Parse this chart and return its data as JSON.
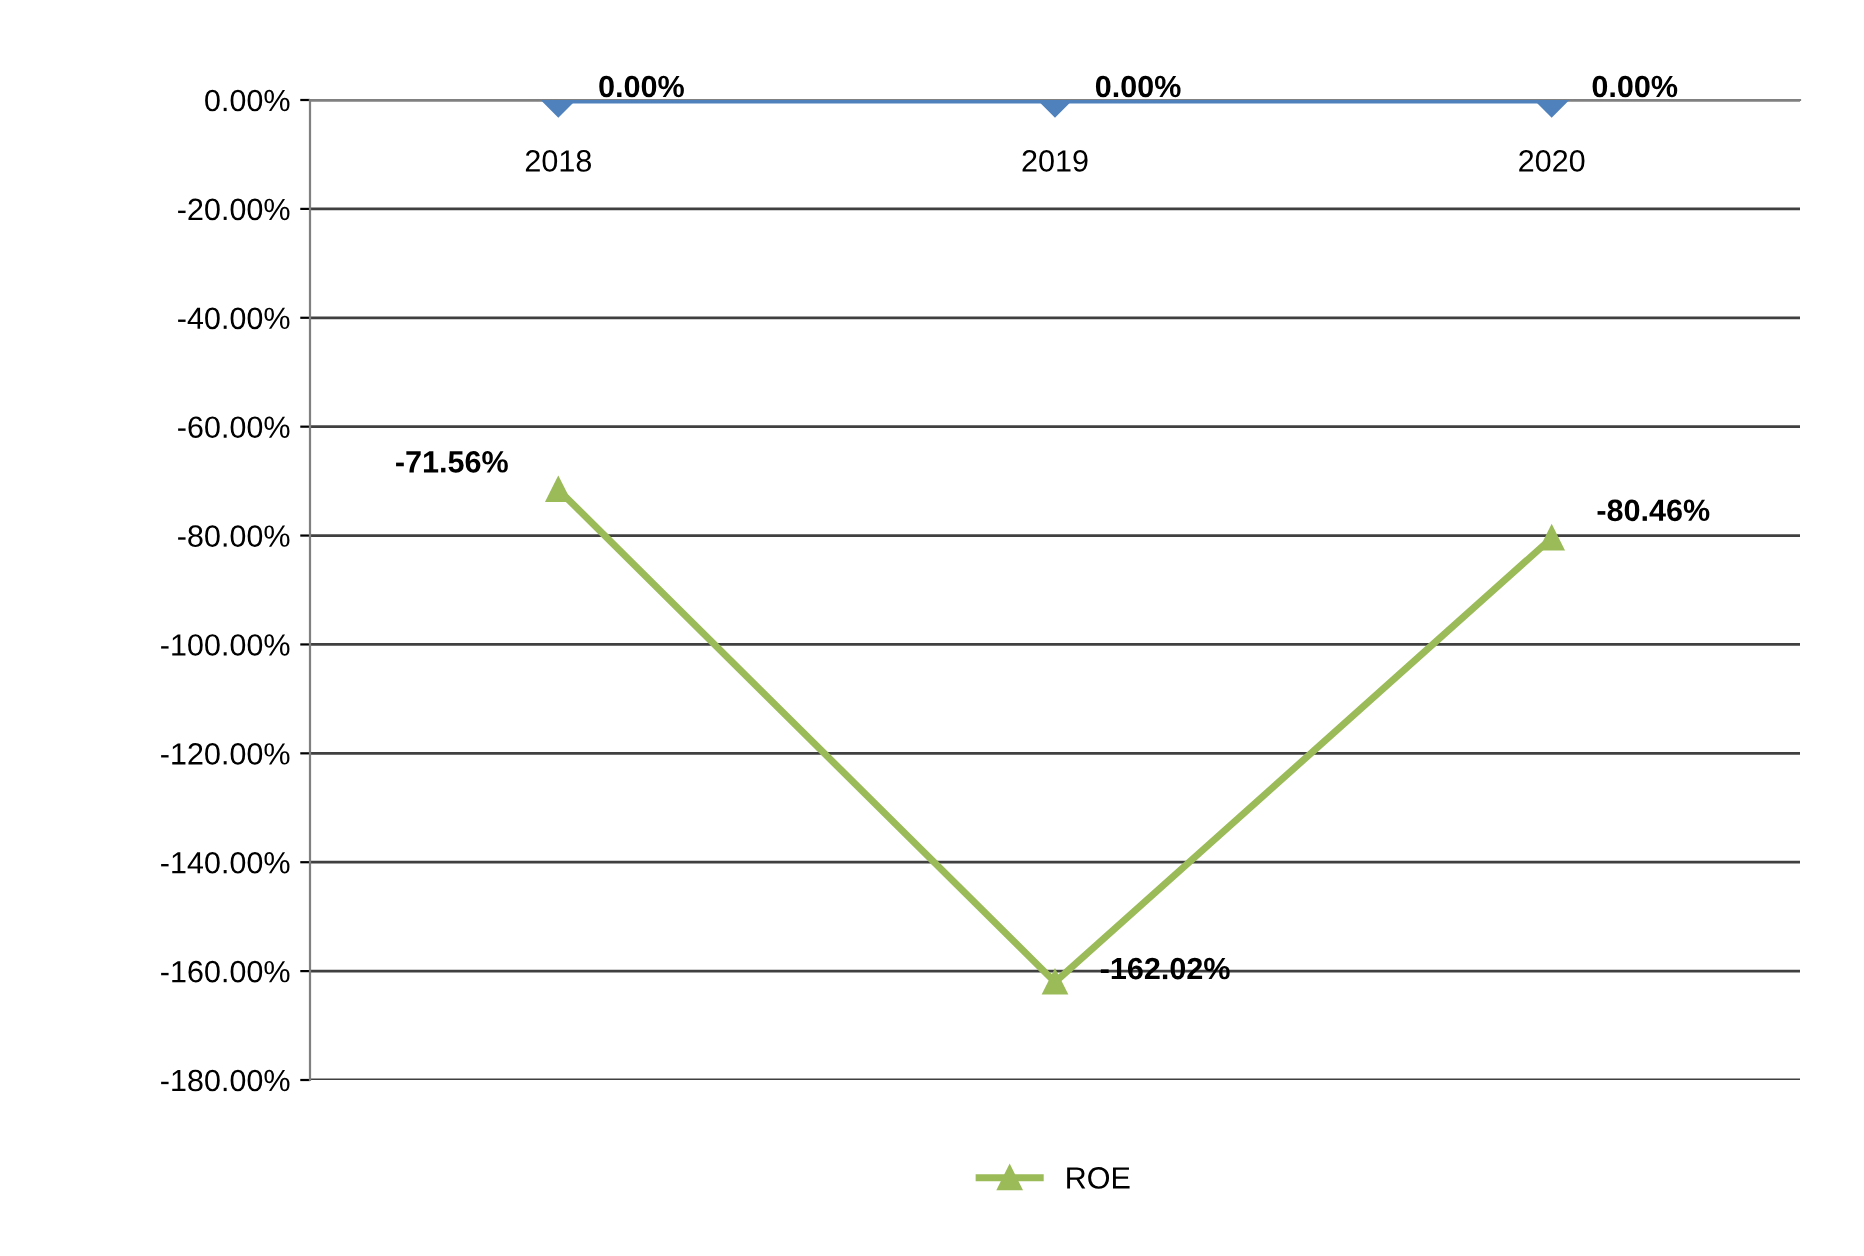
{
  "chart_data": {
    "type": "line",
    "categories": [
      "2018",
      "2019",
      "2020"
    ],
    "series": [
      {
        "color": "#4f81bd",
        "marker": "diamond",
        "values": [
          0,
          0,
          0
        ],
        "value_labels": [
          "0.00%",
          "0.00%",
          "0.00%"
        ]
      },
      {
        "name": "ROE",
        "color": "#9bbb59",
        "marker": "triangle",
        "values": [
          -71.56,
          -162.02,
          -80.46
        ],
        "value_labels": [
          "-71.56%",
          "-162.02%",
          "-80.46%"
        ]
      }
    ],
    "ylim": [
      -180,
      0
    ],
    "yticks": [
      {
        "value": 0,
        "label": "0.00%"
      },
      {
        "value": -20,
        "label": "-20.00%"
      },
      {
        "value": -40,
        "label": "-40.00%"
      },
      {
        "value": -60,
        "label": "-60.00%"
      },
      {
        "value": -80,
        "label": "-80.00%"
      },
      {
        "value": -100,
        "label": "-100.00%"
      },
      {
        "value": -120,
        "label": "-120.00%"
      },
      {
        "value": -140,
        "label": "-140.00%"
      },
      {
        "value": -160,
        "label": "-160.00%"
      },
      {
        "value": -180,
        "label": "-180.00%"
      }
    ],
    "grid": "y",
    "legend": "bottom",
    "line_style": "solid"
  }
}
